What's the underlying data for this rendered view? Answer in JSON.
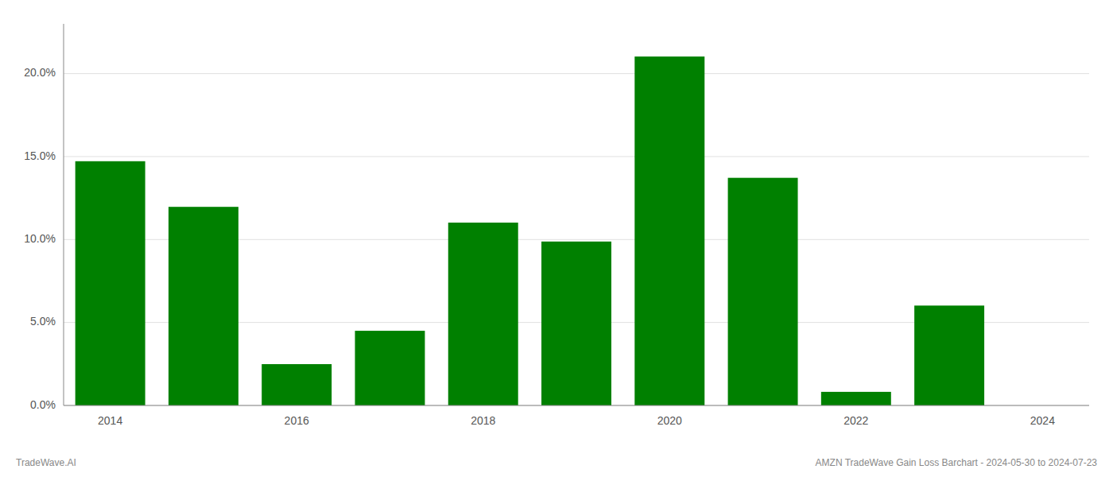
{
  "chart_data": {
    "type": "bar",
    "categories": [
      "2014",
      null,
      "2016",
      null,
      "2018",
      null,
      "2020",
      null,
      "2022",
      null,
      "2024"
    ],
    "values": [
      14.72,
      11.97,
      2.49,
      4.5,
      11.02,
      9.88,
      21.03,
      13.72,
      0.82,
      6.02,
      0.0
    ],
    "color": "#008000",
    "ylim": [
      0,
      23
    ],
    "yticks": [
      {
        "value": 0.0,
        "label": "0.0%"
      },
      {
        "value": 5.0,
        "label": "5.0%"
      },
      {
        "value": 10.0,
        "label": "10.0%"
      },
      {
        "value": 15.0,
        "label": "15.0%"
      },
      {
        "value": 20.0,
        "label": "20.0%"
      }
    ],
    "grid": true,
    "annotations": [
      "TradeWave.AI",
      "AMZN TradeWave Gain Loss Barchart - 2024-05-30 to 2024-07-23"
    ]
  }
}
